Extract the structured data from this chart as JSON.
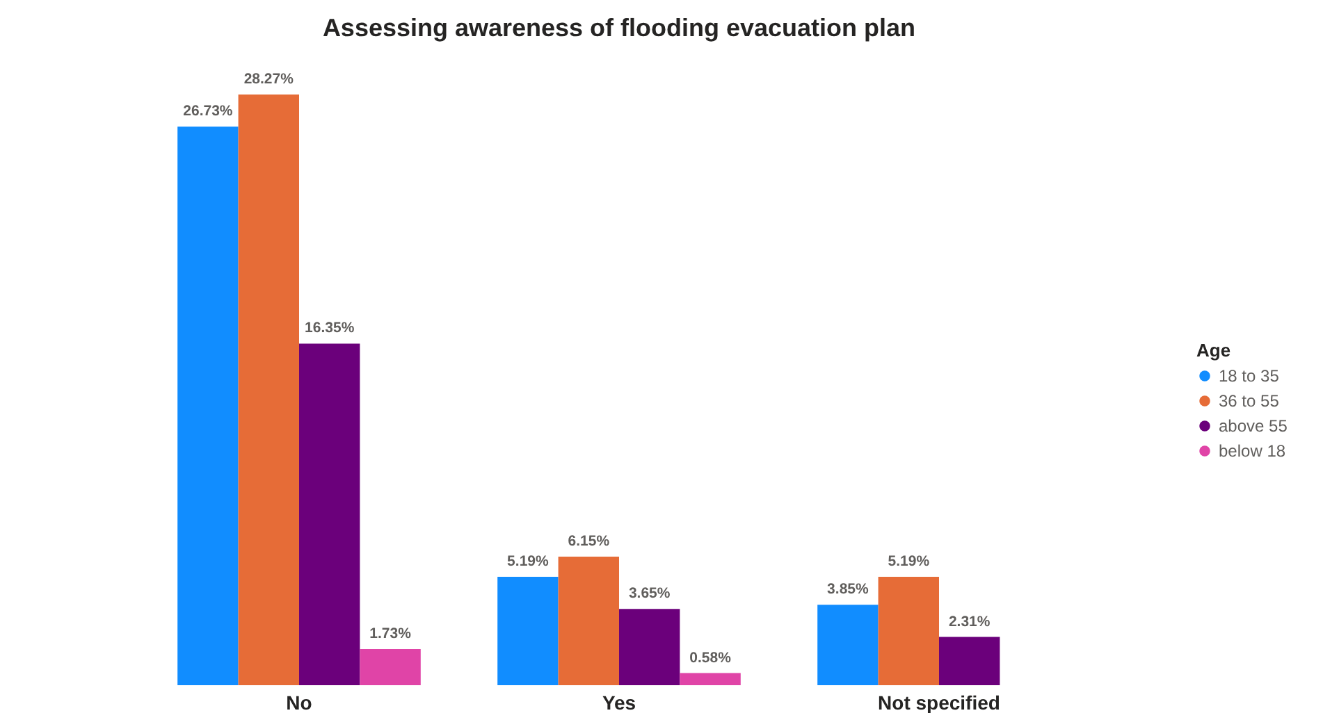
{
  "chart_data": {
    "type": "bar",
    "title": "Assessing awareness of flooding evacuation plan",
    "categories": [
      "No",
      "Yes",
      "Not specified"
    ],
    "legend_title": "Age",
    "series": [
      {
        "name": "18 to 35",
        "color": "#118dff",
        "values": [
          26.73,
          5.19,
          3.85
        ],
        "value_labels": [
          "26.73%",
          "5.19%",
          "3.85%"
        ]
      },
      {
        "name": "36 to 55",
        "color": "#e66c37",
        "values": [
          28.27,
          6.15,
          5.19
        ],
        "value_labels": [
          "28.27%",
          "6.15%",
          "5.19%"
        ]
      },
      {
        "name": "above 55",
        "color": "#6b007b",
        "values": [
          16.35,
          3.65,
          2.31
        ],
        "value_labels": [
          "16.35%",
          "3.65%",
          "2.31%"
        ]
      },
      {
        "name": "below 18",
        "color": "#e044a7",
        "values": [
          1.73,
          0.58,
          null
        ],
        "value_labels": [
          "1.73%",
          "0.58%",
          null
        ]
      }
    ],
    "legend": "right",
    "marker": "circle",
    "tick_labels": "x",
    "grid": false
  }
}
